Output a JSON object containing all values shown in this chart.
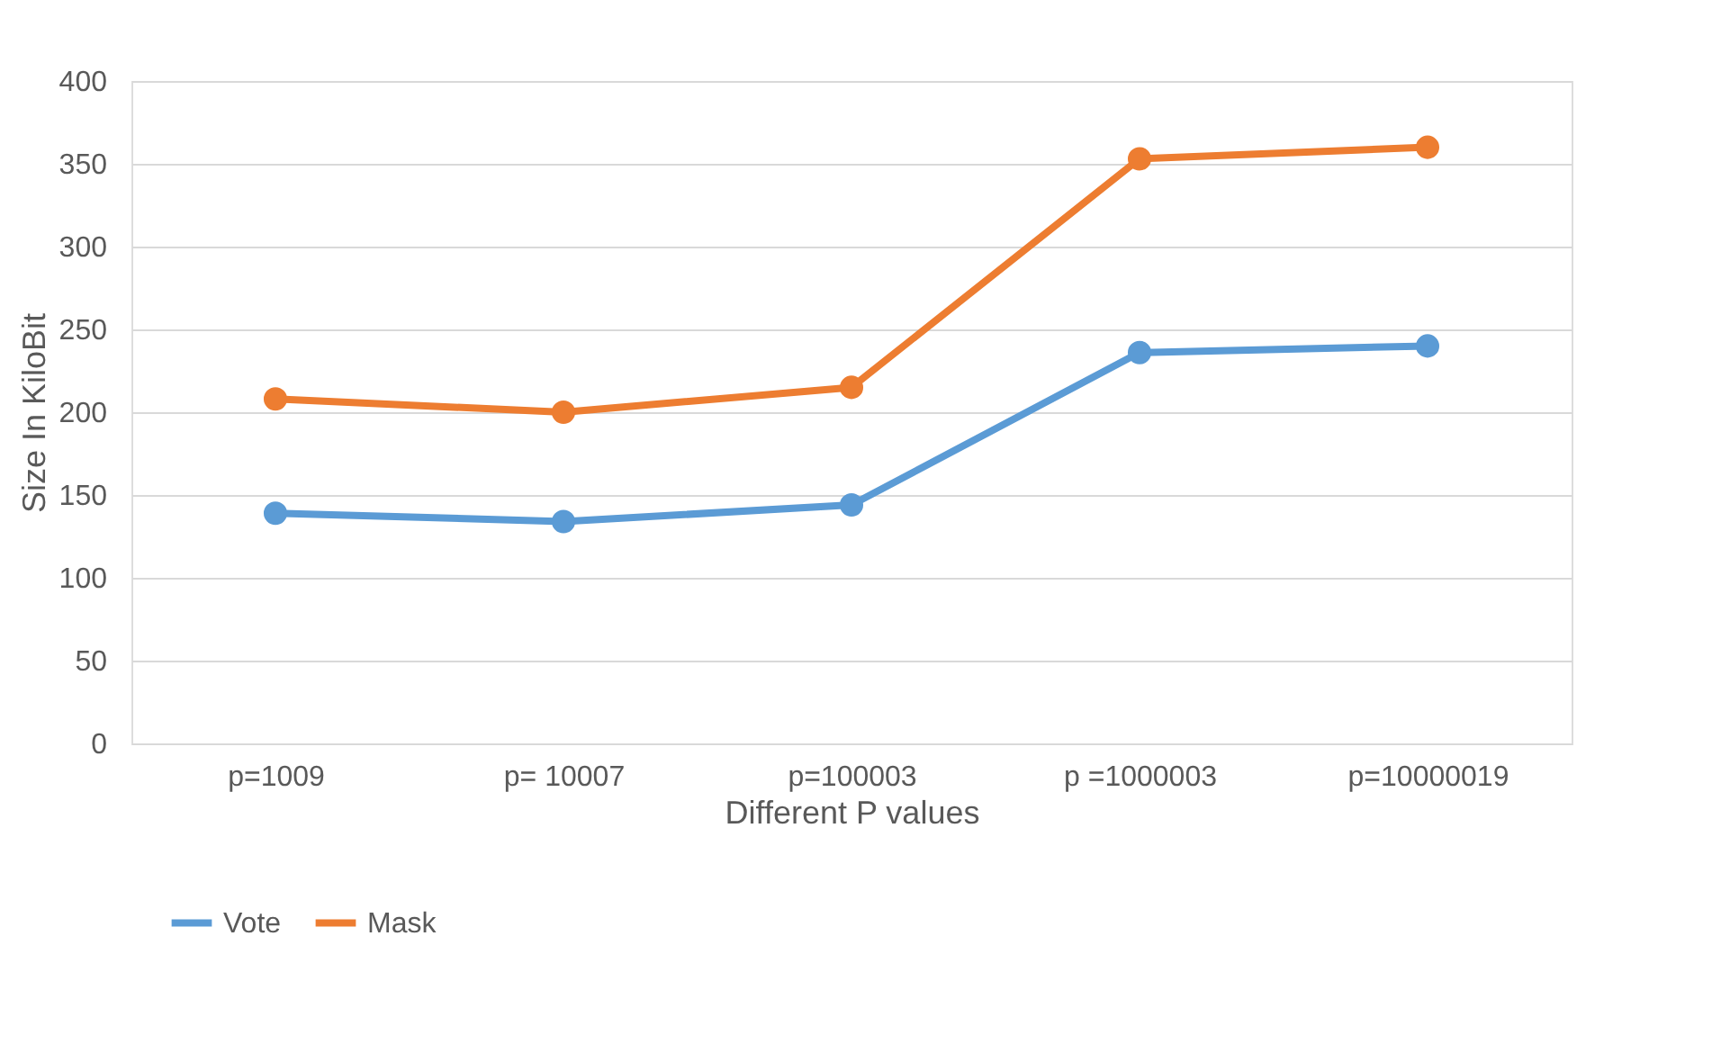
{
  "chart_data": {
    "type": "line",
    "xlabel": "Different P values",
    "ylabel": "Size In KiloBit",
    "categories": [
      "p=1009",
      "p= 10007",
      "p=100003",
      "p =1000003",
      "p=10000019"
    ],
    "series": [
      {
        "name": "Vote",
        "color": "#5b9bd5",
        "values": [
          139,
          134,
          144,
          236,
          240
        ]
      },
      {
        "name": "Mask",
        "color": "#ed7d31",
        "values": [
          208,
          200,
          215,
          353,
          360
        ]
      }
    ],
    "ylim": [
      0,
      400
    ],
    "yticks": [
      0,
      50,
      100,
      150,
      200,
      250,
      300,
      350,
      400
    ],
    "grid": "y",
    "legend": "bottom",
    "marker": "circle",
    "line_style": "solid"
  }
}
